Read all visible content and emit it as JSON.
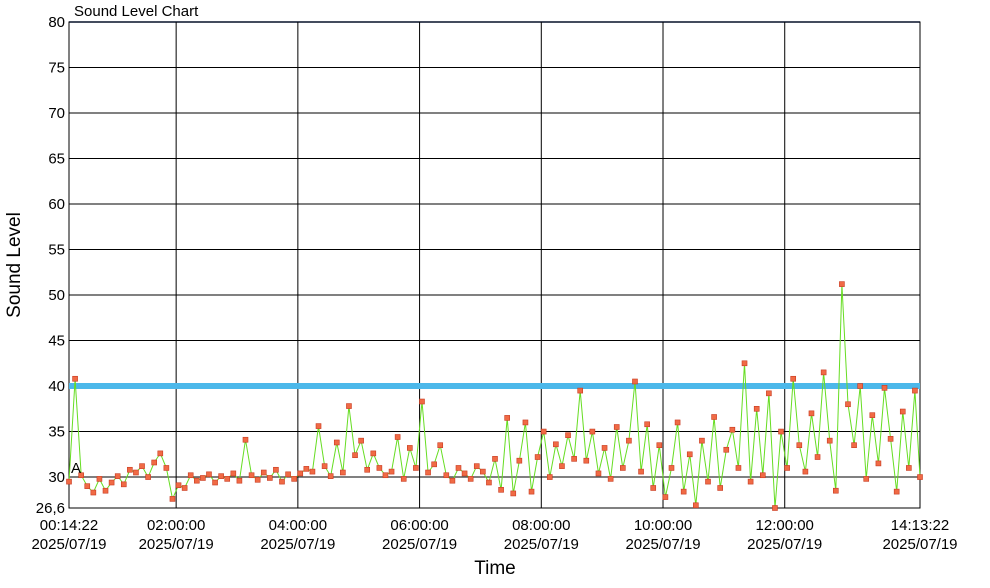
{
  "chart_data": {
    "type": "line",
    "title": "Sound Level Chart",
    "xlabel": "Time",
    "ylabel": "Sound Level",
    "annotation": "A",
    "threshold": 40,
    "threshold_color": "#4cb8ea",
    "grid": true,
    "ylim": [
      26.6,
      80
    ],
    "yticks": [
      {
        "value": 26.6,
        "label": "26,6"
      },
      30,
      35,
      40,
      45,
      50,
      55,
      60,
      65,
      70,
      75,
      80
    ],
    "xlim": [
      "2025-07-19 00:14:22",
      "2025-07-19 14:13:22"
    ],
    "xticks": [
      {
        "value": "2025-07-19 00:14:22",
        "label": "00:14:22\n2025/07/19"
      },
      {
        "value": "2025-07-19 02:00:00",
        "label": "02:00:00\n2025/07/19"
      },
      {
        "value": "2025-07-19 04:00:00",
        "label": "04:00:00\n2025/07/19"
      },
      {
        "value": "2025-07-19 06:00:00",
        "label": "06:00:00\n2025/07/19"
      },
      {
        "value": "2025-07-19 08:00:00",
        "label": "08:00:00\n2025/07/19"
      },
      {
        "value": "2025-07-19 10:00:00",
        "label": "10:00:00\n2025/07/19"
      },
      {
        "value": "2025-07-19 12:00:00",
        "label": "12:00:00\n2025/07/19"
      },
      {
        "value": "2025-07-19 14:13:22",
        "label": "14:13:22\n2025/07/19"
      }
    ],
    "x": [
      "2025-07-19 00:14:22",
      "2025-07-19 00:20:22",
      "2025-07-19 00:26:22",
      "2025-07-19 00:32:22",
      "2025-07-19 00:38:22",
      "2025-07-19 00:44:22",
      "2025-07-19 00:50:22",
      "2025-07-19 00:56:22",
      "2025-07-19 01:02:22",
      "2025-07-19 01:08:22",
      "2025-07-19 01:14:22",
      "2025-07-19 01:20:22",
      "2025-07-19 01:26:22",
      "2025-07-19 01:32:22",
      "2025-07-19 01:38:22",
      "2025-07-19 01:44:22",
      "2025-07-19 01:50:22",
      "2025-07-19 01:56:22",
      "2025-07-19 02:02:22",
      "2025-07-19 02:08:22",
      "2025-07-19 02:14:22",
      "2025-07-19 02:20:22",
      "2025-07-19 02:26:22",
      "2025-07-19 02:32:22",
      "2025-07-19 02:38:22",
      "2025-07-19 02:44:22",
      "2025-07-19 02:50:22",
      "2025-07-19 02:56:22",
      "2025-07-19 03:02:22",
      "2025-07-19 03:08:22",
      "2025-07-19 03:14:22",
      "2025-07-19 03:20:22",
      "2025-07-19 03:26:22",
      "2025-07-19 03:32:22",
      "2025-07-19 03:38:22",
      "2025-07-19 03:44:22",
      "2025-07-19 03:50:22",
      "2025-07-19 03:56:22",
      "2025-07-19 04:02:22",
      "2025-07-19 04:08:22",
      "2025-07-19 04:14:22",
      "2025-07-19 04:20:22",
      "2025-07-19 04:26:22",
      "2025-07-19 04:32:22",
      "2025-07-19 04:38:22",
      "2025-07-19 04:44:22",
      "2025-07-19 04:50:22",
      "2025-07-19 04:56:22",
      "2025-07-19 05:02:22",
      "2025-07-19 05:08:22",
      "2025-07-19 05:14:22",
      "2025-07-19 05:20:22",
      "2025-07-19 05:26:22",
      "2025-07-19 05:32:22",
      "2025-07-19 05:38:22",
      "2025-07-19 05:44:22",
      "2025-07-19 05:50:22",
      "2025-07-19 05:56:22",
      "2025-07-19 06:02:22",
      "2025-07-19 06:08:22",
      "2025-07-19 06:14:22",
      "2025-07-19 06:20:22",
      "2025-07-19 06:26:22",
      "2025-07-19 06:32:22",
      "2025-07-19 06:38:22",
      "2025-07-19 06:44:22",
      "2025-07-19 06:50:22",
      "2025-07-19 06:56:22",
      "2025-07-19 07:02:22",
      "2025-07-19 07:08:22",
      "2025-07-19 07:14:22",
      "2025-07-19 07:20:22",
      "2025-07-19 07:26:22",
      "2025-07-19 07:32:22",
      "2025-07-19 07:38:22",
      "2025-07-19 07:44:22",
      "2025-07-19 07:50:22",
      "2025-07-19 07:56:22",
      "2025-07-19 08:02:22",
      "2025-07-19 08:08:22",
      "2025-07-19 08:14:22",
      "2025-07-19 08:20:22",
      "2025-07-19 08:26:22",
      "2025-07-19 08:32:22",
      "2025-07-19 08:38:22",
      "2025-07-19 08:44:22",
      "2025-07-19 08:50:22",
      "2025-07-19 08:56:22",
      "2025-07-19 09:02:22",
      "2025-07-19 09:08:22",
      "2025-07-19 09:14:22",
      "2025-07-19 09:20:22",
      "2025-07-19 09:26:22",
      "2025-07-19 09:32:22",
      "2025-07-19 09:38:22",
      "2025-07-19 09:44:22",
      "2025-07-19 09:50:22",
      "2025-07-19 09:56:22",
      "2025-07-19 10:02:22",
      "2025-07-19 10:08:22",
      "2025-07-19 10:14:22",
      "2025-07-19 10:20:22",
      "2025-07-19 10:26:22",
      "2025-07-19 10:32:22",
      "2025-07-19 10:38:22",
      "2025-07-19 10:44:22",
      "2025-07-19 10:50:22",
      "2025-07-19 10:56:22",
      "2025-07-19 11:02:22",
      "2025-07-19 11:08:22",
      "2025-07-19 11:14:22",
      "2025-07-19 11:20:22",
      "2025-07-19 11:26:22",
      "2025-07-19 11:32:22",
      "2025-07-19 11:38:22",
      "2025-07-19 11:44:22",
      "2025-07-19 11:50:22",
      "2025-07-19 11:56:22",
      "2025-07-19 12:02:22",
      "2025-07-19 12:08:22",
      "2025-07-19 12:14:22",
      "2025-07-19 12:20:22",
      "2025-07-19 12:26:22",
      "2025-07-19 12:32:22",
      "2025-07-19 12:38:22",
      "2025-07-19 12:44:22",
      "2025-07-19 12:50:22",
      "2025-07-19 12:56:22",
      "2025-07-19 13:02:22",
      "2025-07-19 13:08:22",
      "2025-07-19 13:14:22",
      "2025-07-19 13:20:22",
      "2025-07-19 13:26:22",
      "2025-07-19 13:32:22",
      "2025-07-19 13:38:22",
      "2025-07-19 13:44:22",
      "2025-07-19 13:50:22",
      "2025-07-19 13:56:22",
      "2025-07-19 14:02:22",
      "2025-07-19 14:08:22",
      "2025-07-19 14:13:22"
    ],
    "series": [
      {
        "color": "#66dd22",
        "marker_color": "#f06a45",
        "values": [
          29.5,
          40.8,
          30.2,
          29.0,
          28.3,
          29.8,
          28.5,
          29.4,
          30.1,
          29.2,
          30.8,
          30.5,
          31.2,
          30.0,
          31.6,
          32.6,
          31.0,
          27.6,
          29.1,
          28.8,
          30.2,
          29.6,
          29.9,
          30.3,
          29.4,
          30.1,
          29.8,
          30.4,
          29.6,
          34.1,
          30.2,
          29.7,
          30.5,
          29.9,
          30.8,
          29.5,
          30.3,
          29.8,
          30.4,
          30.9,
          30.6,
          35.6,
          31.2,
          30.1,
          33.8,
          30.5,
          37.8,
          32.4,
          34.0,
          30.8,
          32.6,
          31.0,
          30.2,
          30.6,
          34.4,
          29.8,
          33.2,
          31.0,
          38.3,
          30.5,
          31.4,
          33.5,
          30.2,
          29.6,
          31.0,
          30.4,
          29.8,
          31.2,
          30.6,
          29.4,
          32.0,
          28.6,
          36.5,
          28.2,
          31.8,
          36.0,
          28.4,
          32.2,
          35.0,
          30.0,
          33.6,
          31.2,
          34.6,
          32.0,
          39.5,
          31.8,
          35.0,
          30.4,
          33.2,
          29.8,
          35.5,
          31.0,
          34.0,
          40.5,
          30.6,
          35.8,
          28.8,
          33.5,
          27.8,
          31.0,
          36.0,
          28.4,
          32.5,
          26.9,
          34.0,
          29.5,
          36.6,
          28.8,
          33.0,
          35.2,
          31.0,
          42.5,
          29.5,
          37.5,
          30.2,
          39.2,
          26.6,
          35.0,
          31.0,
          40.8,
          33.5,
          30.6,
          37.0,
          32.2,
          41.5,
          34.0,
          28.5,
          51.2,
          38.0,
          33.5,
          40.0,
          29.8,
          36.8,
          31.5,
          39.8,
          34.2,
          28.4,
          37.2,
          31.0,
          39.5,
          30.0
        ]
      }
    ]
  }
}
